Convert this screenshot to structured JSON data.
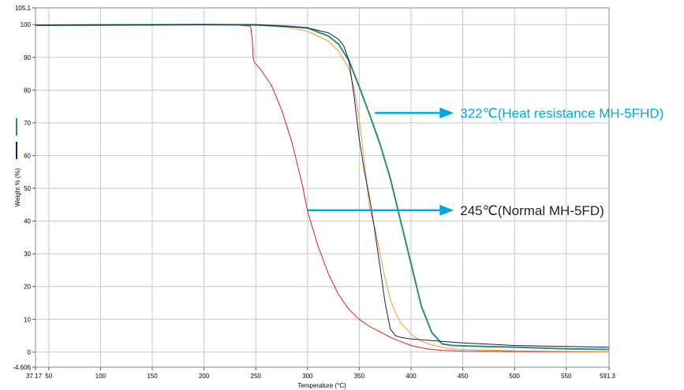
{
  "chart_data": {
    "type": "line",
    "xlabel": "Temperature (°C)",
    "ylabel": "Weight % (%)",
    "xlim": [
      37.17,
      591.3
    ],
    "ylim": [
      -4.606,
      105.1
    ],
    "x_ticks": [
      "37.17",
      "50",
      "100",
      "150",
      "200",
      "250",
      "300",
      "350",
      "400",
      "450",
      "500",
      "550",
      "591.3"
    ],
    "x_tick_values": [
      37.17,
      50,
      100,
      150,
      200,
      250,
      300,
      350,
      400,
      450,
      500,
      550,
      591.3
    ],
    "y_ticks": [
      "105.1",
      "100",
      "90",
      "80",
      "70",
      "60",
      "50",
      "40",
      "30",
      "20",
      "10",
      "0",
      "-4.606"
    ],
    "y_tick_values": [
      105.1,
      100,
      90,
      80,
      70,
      60,
      50,
      40,
      30,
      20,
      10,
      0,
      -4.606
    ],
    "grid": true,
    "legend_markers": [
      {
        "color": "#2e8b7a"
      },
      {
        "color": "#1a1a5a"
      }
    ],
    "series": [
      {
        "color": "#d42020",
        "x": [
          37.17,
          50,
          100,
          150,
          200,
          230,
          245,
          246.5,
          247.5,
          248.5,
          250,
          255,
          265,
          275,
          285,
          295,
          300,
          310,
          320,
          330,
          340,
          350,
          360,
          370,
          380,
          390,
          400,
          410,
          420,
          430,
          450,
          500,
          550,
          591.3
        ],
        "y": [
          99.8,
          99.9,
          100,
          100,
          100,
          99.9,
          99.5,
          96,
          90,
          88.5,
          88,
          86.2,
          81.5,
          74,
          64,
          51,
          43,
          32.5,
          24,
          17.5,
          13,
          10,
          7.8,
          6.2,
          4.5,
          3.2,
          2,
          1.3,
          0.8,
          0.5,
          0.3,
          0.2,
          0.1,
          0.1
        ]
      },
      {
        "color": "#ee9a30",
        "x": [
          37.17,
          200,
          250,
          280,
          300,
          320,
          330,
          340,
          345,
          350,
          355,
          360,
          365,
          370,
          375,
          380,
          385,
          390,
          400,
          410,
          420,
          430,
          440,
          460,
          500,
          550,
          591.3
        ],
        "y": [
          99.8,
          100,
          99.8,
          99.2,
          98,
          95,
          92,
          86.5,
          80.5,
          71,
          58,
          44,
          38,
          30,
          22.5,
          16,
          12,
          9,
          5.5,
          3.3,
          2.2,
          1.5,
          1,
          0.7,
          0.4,
          0.2,
          0.1
        ]
      },
      {
        "color": "#2e8b7a",
        "x": [
          37.17,
          200,
          250,
          280,
          300,
          320,
          330,
          340,
          350,
          360,
          370,
          380,
          390,
          400,
          410,
          420,
          430,
          440,
          460,
          500,
          550,
          591.3
        ],
        "y": [
          99.8,
          100,
          99.9,
          99.5,
          99,
          96.5,
          94,
          89,
          81,
          72.5,
          63.5,
          53,
          40,
          27,
          14,
          6,
          2.5,
          2,
          1.8,
          1.5,
          1,
          0.8
        ]
      },
      {
        "color": "#1a1a5a",
        "x": [
          37.17,
          200,
          250,
          300,
          320,
          330,
          335,
          340,
          345,
          350,
          355,
          360,
          365,
          370,
          375,
          380,
          385,
          390,
          400,
          420,
          450,
          500,
          550,
          591.3
        ],
        "y": [
          99.8,
          100,
          100,
          99,
          97.5,
          95.5,
          93.5,
          89,
          78,
          65,
          55,
          47,
          37,
          26,
          15,
          7,
          5,
          4.5,
          4,
          3.5,
          2.8,
          2,
          1.7,
          1.5
        ]
      }
    ],
    "annotations": [
      {
        "text": "322℃(Heat resistance MH-5FHD)",
        "from_x": 365,
        "to_x": 420,
        "y": 73,
        "color": "#00a8e0",
        "text_color": "#00a8e0"
      },
      {
        "text": "245℃(Normal MH-5FD)",
        "from_x": 300,
        "to_x": 420,
        "y": 43.3,
        "color": "#00a8e0",
        "text_color": "#222222"
      }
    ]
  }
}
